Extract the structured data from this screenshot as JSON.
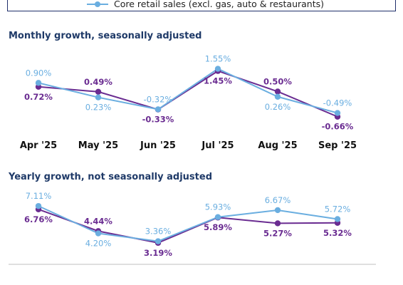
{
  "colors": {
    "series_a": "#6a2c91",
    "series_b": "#6aaee0",
    "title": "#1f3a68",
    "divider": "#bfbfbf",
    "legend_border": "#1f2f6b"
  },
  "legend": {
    "series_b_label": "Core retail sales (excl. gas, auto & restaurants)"
  },
  "chart_data": [
    {
      "type": "line",
      "title": "Monthly growth, seasonally adjusted",
      "categories": [
        "Apr '25",
        "May '25",
        "Jun '25",
        "Jul '25",
        "Aug '25",
        "Sep '25"
      ],
      "series": [
        {
          "values": [
            0.72,
            0.49,
            -0.33,
            1.45,
            0.5,
            -0.66
          ],
          "labels": [
            "0.72%",
            "0.49%",
            "-0.33%",
            "1.45%",
            "0.50%",
            "-0.66%"
          ]
        },
        {
          "name": "Core retail sales (excl. gas, auto & restaurants)",
          "values": [
            0.9,
            0.23,
            -0.32,
            1.55,
            0.26,
            -0.49
          ],
          "labels": [
            "0.90%",
            "0.23%",
            "-0.32%",
            "1.55%",
            "0.26%",
            "-0.49%"
          ]
        }
      ],
      "ylim": [
        -0.8,
        1.7
      ]
    },
    {
      "type": "line",
      "title": "Yearly growth, not seasonally adjusted",
      "categories": [
        "Apr '25",
        "May '25",
        "Jun '25",
        "Jul '25",
        "Aug '25",
        "Sep '25"
      ],
      "series": [
        {
          "values": [
            6.76,
            4.44,
            3.19,
            5.89,
            5.27,
            5.32
          ],
          "labels": [
            "6.76%",
            "4.44%",
            "3.19%",
            "5.89%",
            "5.27%",
            "5.32%"
          ]
        },
        {
          "name": "Core retail sales (excl. gas, auto & restaurants)",
          "values": [
            7.11,
            4.2,
            3.36,
            5.93,
            6.67,
            5.72
          ],
          "labels": [
            "7.11%",
            "4.20%",
            "3.36%",
            "5.93%",
            "6.67%",
            "5.72%"
          ]
        }
      ],
      "ylim": [
        2.8,
        7.5
      ]
    }
  ]
}
